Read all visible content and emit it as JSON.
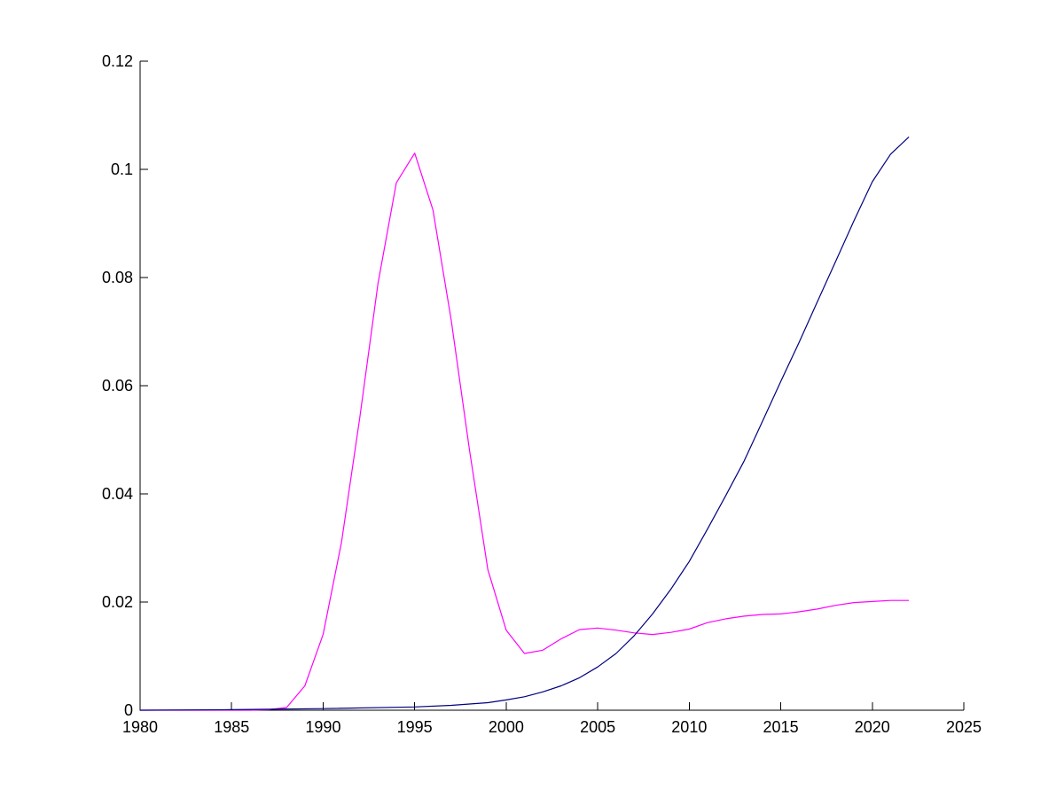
{
  "chart_data": {
    "type": "line",
    "title": "",
    "xlabel": "",
    "ylabel": "",
    "xlim": [
      1980,
      2025
    ],
    "ylim": [
      0,
      0.12
    ],
    "xticks": [
      1980,
      1985,
      1990,
      1995,
      2000,
      2005,
      2010,
      2015,
      2020,
      2025
    ],
    "yticks": [
      0,
      0.02,
      0.04,
      0.06,
      0.08,
      0.1,
      0.12
    ],
    "xtick_labels": [
      "1980",
      "1985",
      "1990",
      "1995",
      "2000",
      "2005",
      "2010",
      "2015",
      "2020",
      "2025"
    ],
    "ytick_labels": [
      "0",
      "0.02",
      "0.04",
      "0.06",
      "0.08",
      "0.1",
      "0.12"
    ],
    "grid": false,
    "legend": "none",
    "series": [
      {
        "color": "#ff00ff",
        "x": [
          1980,
          1983,
          1986,
          1987,
          1988,
          1989,
          1990,
          1991,
          1992,
          1993,
          1994,
          1995,
          1996,
          1997,
          1998,
          1999,
          2000,
          2001,
          2002,
          2003,
          2004,
          2005,
          2006,
          2007,
          2008,
          2009,
          2010,
          2011,
          2012,
          2013,
          2014,
          2015,
          2016,
          2017,
          2018,
          2019,
          2020,
          2021,
          2022
        ],
        "y": [
          0,
          0,
          0,
          0.0001,
          0.0005,
          0.0045,
          0.014,
          0.031,
          0.054,
          0.079,
          0.0975,
          0.103,
          0.0925,
          0.072,
          0.048,
          0.026,
          0.0148,
          0.0105,
          0.0111,
          0.0132,
          0.0149,
          0.0152,
          0.0148,
          0.0143,
          0.014,
          0.0144,
          0.015,
          0.0162,
          0.0169,
          0.0174,
          0.0177,
          0.0178,
          0.0182,
          0.0187,
          0.0194,
          0.0199,
          0.0201,
          0.0203,
          0.0203
        ]
      },
      {
        "color": "#00007f",
        "x": [
          1980,
          1985,
          1990,
          1995,
          1997,
          1999,
          2000,
          2001,
          2002,
          2003,
          2004,
          2005,
          2006,
          2007,
          2008,
          2009,
          2010,
          2011,
          2012,
          2013,
          2014,
          2015,
          2016,
          2017,
          2018,
          2019,
          2020,
          2021,
          2022
        ],
        "y": [
          0,
          0.0001,
          0.0003,
          0.0006,
          0.0009,
          0.0014,
          0.0019,
          0.0025,
          0.0034,
          0.0045,
          0.006,
          0.008,
          0.0105,
          0.0138,
          0.0178,
          0.0224,
          0.0275,
          0.0335,
          0.0397,
          0.0461,
          0.0534,
          0.0608,
          0.068,
          0.0755,
          0.083,
          0.0905,
          0.0977,
          0.1028,
          0.106
        ]
      }
    ]
  }
}
